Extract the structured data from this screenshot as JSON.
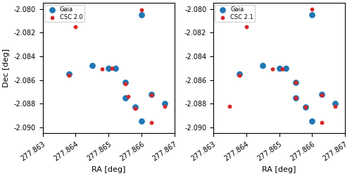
{
  "chart_data": [
    {
      "type": "scatter",
      "xlabel": "RA [deg]",
      "ylabel": "Dec [deg]",
      "xlim": [
        277.863,
        277.867
      ],
      "ylim": [
        -2.0905,
        -2.0795
      ],
      "xticks": [
        277.863,
        277.864,
        277.865,
        277.866,
        277.867
      ],
      "yticks": [
        {
          "value": -2.09,
          "label": "-2.090"
        },
        -2.088,
        -2.086,
        -2.084,
        -2.082,
        {
          "value": -2.08,
          "label": "-2.080"
        }
      ],
      "legend": "upper left",
      "series": [
        {
          "name": "Gaia",
          "color": "#1f77b4",
          "x": [
            277.8638,
            277.8645,
            277.865,
            277.8652,
            277.8655,
            277.8655,
            277.8658,
            277.866,
            277.8663,
            277.866,
            277.8667
          ],
          "values": [
            -2.0855,
            -2.0848,
            -2.085,
            -2.085,
            -2.0862,
            -2.0875,
            -2.0883,
            -2.0805,
            -2.0872,
            -2.0895,
            -2.088
          ]
        },
        {
          "name": "CSC 2.0",
          "color": "#d62728",
          "x": [
            277.8638,
            277.864,
            277.8648,
            277.8651,
            277.8655,
            277.8656,
            277.8658,
            277.866,
            277.8663,
            277.8663,
            277.8667
          ],
          "values": [
            -2.0856,
            -2.0815,
            -2.0851,
            -2.085,
            -2.0863,
            -2.0874,
            -2.0884,
            -2.0801,
            -2.0873,
            -2.0896,
            -2.0882
          ]
        }
      ]
    },
    {
      "type": "scatter",
      "xlabel": "RA [deg]",
      "xlim": [
        277.863,
        277.867
      ],
      "ylim": [
        -2.0905,
        -2.0795
      ],
      "xticks": [
        277.863,
        277.864,
        277.865,
        277.866,
        277.867
      ],
      "yticks": [
        {
          "value": -2.09,
          "label": "-2.090"
        },
        -2.088,
        -2.086,
        -2.084,
        -2.082,
        {
          "value": -2.08,
          "label": "-2.080"
        }
      ],
      "legend": "upper left",
      "series": [
        {
          "name": "Gaia",
          "color": "#1f77b4",
          "x": [
            277.8638,
            277.8645,
            277.865,
            277.8652,
            277.8655,
            277.8655,
            277.8658,
            277.866,
            277.8663,
            277.866,
            277.8667
          ],
          "values": [
            -2.0855,
            -2.0848,
            -2.085,
            -2.085,
            -2.0862,
            -2.0875,
            -2.0883,
            -2.0805,
            -2.0872,
            -2.0895,
            -2.088
          ]
        },
        {
          "name": "CSC 2.1",
          "color": "#d62728",
          "x": [
            277.8635,
            277.8638,
            277.864,
            277.8648,
            277.8651,
            277.8655,
            277.8655,
            277.8658,
            277.866,
            277.8663,
            277.8663,
            277.8667
          ],
          "values": [
            -2.0882,
            -2.0856,
            -2.0815,
            -2.0851,
            -2.0851,
            -2.0862,
            -2.0875,
            -2.0883,
            -2.08,
            -2.0873,
            -2.0896,
            -2.0882
          ]
        }
      ]
    }
  ]
}
